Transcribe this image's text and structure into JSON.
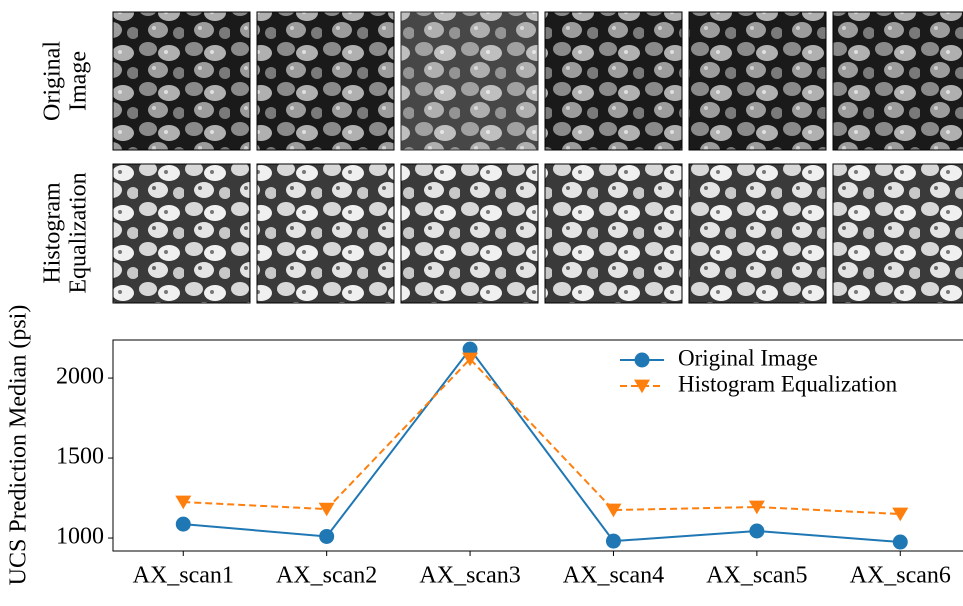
{
  "chart_data": {
    "type": "line",
    "row_labels": [
      [
        "Original",
        "Image"
      ],
      [
        "Histogram",
        "Equalization"
      ]
    ],
    "ylabel": "UCS Prediction Median (psi)",
    "categories": [
      "AX_scan1",
      "AX_scan2",
      "AX_scan3",
      "AX_scan4",
      "AX_scan5",
      "AX_scan6"
    ],
    "series": [
      {
        "name": "Original Image",
        "color": "#1f77b4",
        "linestyle": "solid",
        "marker": "circle",
        "values": [
          1087,
          1010,
          2181,
          981,
          1044,
          975
        ]
      },
      {
        "name": "Histogram Equalization",
        "color": "#ff7f0e",
        "linestyle": "dashed",
        "marker": "triangle-down",
        "values": [
          1225,
          1181,
          2119,
          1175,
          1194,
          1150
        ]
      }
    ],
    "ylim": [
      919,
      2238
    ],
    "yticks": [
      1000,
      1500,
      2000
    ],
    "legend": "upper right"
  }
}
